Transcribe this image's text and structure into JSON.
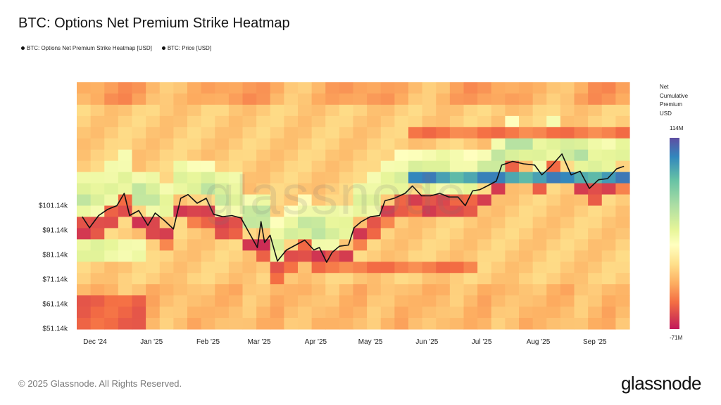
{
  "title": "BTC: Options Net Premium Strike Heatmap",
  "legend": [
    {
      "label": "BTC: Options Net Premium Strike Heatmap [USD]",
      "color": "#111111"
    },
    {
      "label": "BTC: Price [USD]",
      "color": "#111111"
    }
  ],
  "watermark": "glassnode",
  "footer": "© 2025 Glassnode. All Rights Reserved.",
  "brand": "glassnode",
  "colorbar": {
    "title_lines": [
      "Net",
      "Cumulative",
      "Premium",
      "USD"
    ],
    "max_label": "114M",
    "min_label": "-71M"
  },
  "chart_data": {
    "type": "heatmap",
    "x_ticks": [
      "Dec '24",
      "Jan '25",
      "Feb '25",
      "Mar '25",
      "Apr '25",
      "May '25",
      "Jun '25",
      "Jul '25",
      "Aug '25",
      "Sep '25"
    ],
    "y_ticks": [
      "$101.14k",
      "$91.14k",
      "$81.14k",
      "$71.14k",
      "$61.14k",
      "$51.14k"
    ],
    "colorscale_range": [
      -71,
      114
    ],
    "price_series": {
      "name": "BTC: Price [USD]",
      "unit": "k USD",
      "dates": [
        "2024-11-24",
        "2024-11-28",
        "2024-12-03",
        "2024-12-08",
        "2024-12-13",
        "2024-12-17",
        "2024-12-20",
        "2024-12-25",
        "2024-12-30",
        "2025-01-03",
        "2025-01-08",
        "2025-01-13",
        "2025-01-17",
        "2025-01-21",
        "2025-01-26",
        "2025-01-31",
        "2025-02-04",
        "2025-02-09",
        "2025-02-14",
        "2025-02-19",
        "2025-02-25",
        "2025-02-28",
        "2025-03-02",
        "2025-03-04",
        "2025-03-07",
        "2025-03-11",
        "2025-03-16",
        "2025-03-21",
        "2025-03-26",
        "2025-03-31",
        "2025-04-03",
        "2025-04-07",
        "2025-04-10",
        "2025-04-14",
        "2025-04-19",
        "2025-04-22",
        "2025-04-26",
        "2025-05-01",
        "2025-05-06",
        "2025-05-09",
        "2025-05-14",
        "2025-05-20",
        "2025-05-24",
        "2025-05-29",
        "2025-06-03",
        "2025-06-08",
        "2025-06-13",
        "2025-06-18",
        "2025-06-22",
        "2025-06-26",
        "2025-06-30",
        "2025-07-04",
        "2025-07-09",
        "2025-07-12",
        "2025-07-18",
        "2025-07-24",
        "2025-07-30",
        "2025-08-03",
        "2025-08-08",
        "2025-08-14",
        "2025-08-19",
        "2025-08-24",
        "2025-08-29",
        "2025-09-03",
        "2025-09-08",
        "2025-09-13",
        "2025-09-17"
      ],
      "values": [
        96.5,
        92.0,
        97.0,
        99.5,
        101.0,
        106.0,
        97.0,
        99.0,
        93.0,
        98.0,
        95.0,
        91.5,
        104.0,
        105.5,
        102.0,
        104.0,
        97.5,
        96.5,
        97.0,
        96.0,
        88.0,
        84.0,
        94.5,
        86.0,
        89.0,
        78.5,
        83.0,
        85.0,
        87.0,
        83.0,
        84.0,
        78.0,
        82.0,
        84.5,
        85.0,
        92.0,
        94.5,
        96.5,
        97.0,
        103.0,
        104.0,
        106.0,
        109.0,
        105.0,
        105.0,
        106.0,
        104.5,
        104.5,
        101.0,
        107.0,
        107.5,
        109.0,
        111.0,
        117.5,
        119.0,
        118.0,
        117.5,
        113.5,
        117.0,
        122.0,
        113.5,
        115.0,
        108.0,
        111.5,
        112.0,
        116.0,
        117.0
      ]
    }
  }
}
